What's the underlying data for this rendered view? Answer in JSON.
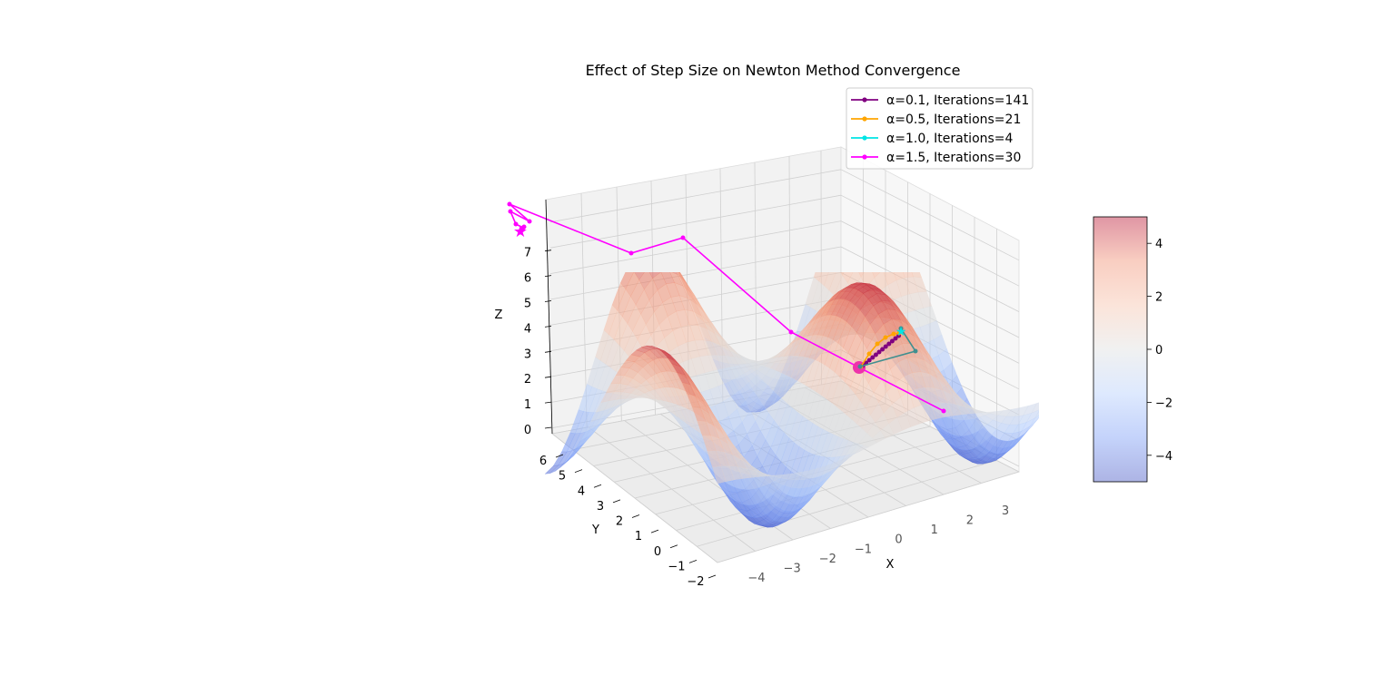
{
  "chart_data": {
    "type": "surface3d",
    "title": "Effect of Step Size on Newton Method Convergence",
    "xlabel": "X",
    "ylabel": "Y",
    "zlabel": "Z",
    "xlim": [
      -4.5,
      3.7
    ],
    "ylim": [
      -2,
      6
    ],
    "zlim": [
      0,
      8.5
    ],
    "x_ticks": [
      "−4",
      "−3",
      "−2",
      "−1",
      "0",
      "1",
      "2",
      "3"
    ],
    "y_ticks": [
      "−2",
      "−1",
      "0",
      "1",
      "2",
      "3",
      "4",
      "5",
      "6"
    ],
    "z_ticks": [
      "0",
      "1",
      "2",
      "3",
      "4",
      "5",
      "6",
      "7"
    ],
    "colorbar": {
      "ticks": [
        "4",
        "2",
        "0",
        "−2",
        "−4"
      ],
      "range": [
        -5,
        5
      ],
      "colormap": "coolwarm",
      "colors": [
        "#3b4cc0",
        "#7396f5",
        "#b0cbfc",
        "#dcdddd",
        "#f6bfa6",
        "#f08a6c",
        "#b40426"
      ]
    },
    "legend_position": "top-right",
    "series": [
      {
        "name": "α=0.1, Iterations=141",
        "color": "#800080"
      },
      {
        "name": "α=0.5, Iterations=21",
        "color": "#ffa500"
      },
      {
        "name": "α=1.0, Iterations=4",
        "color": "#00e5e5"
      },
      {
        "name": "α=1.5, Iterations=30",
        "color": "#ff00ff"
      }
    ]
  }
}
